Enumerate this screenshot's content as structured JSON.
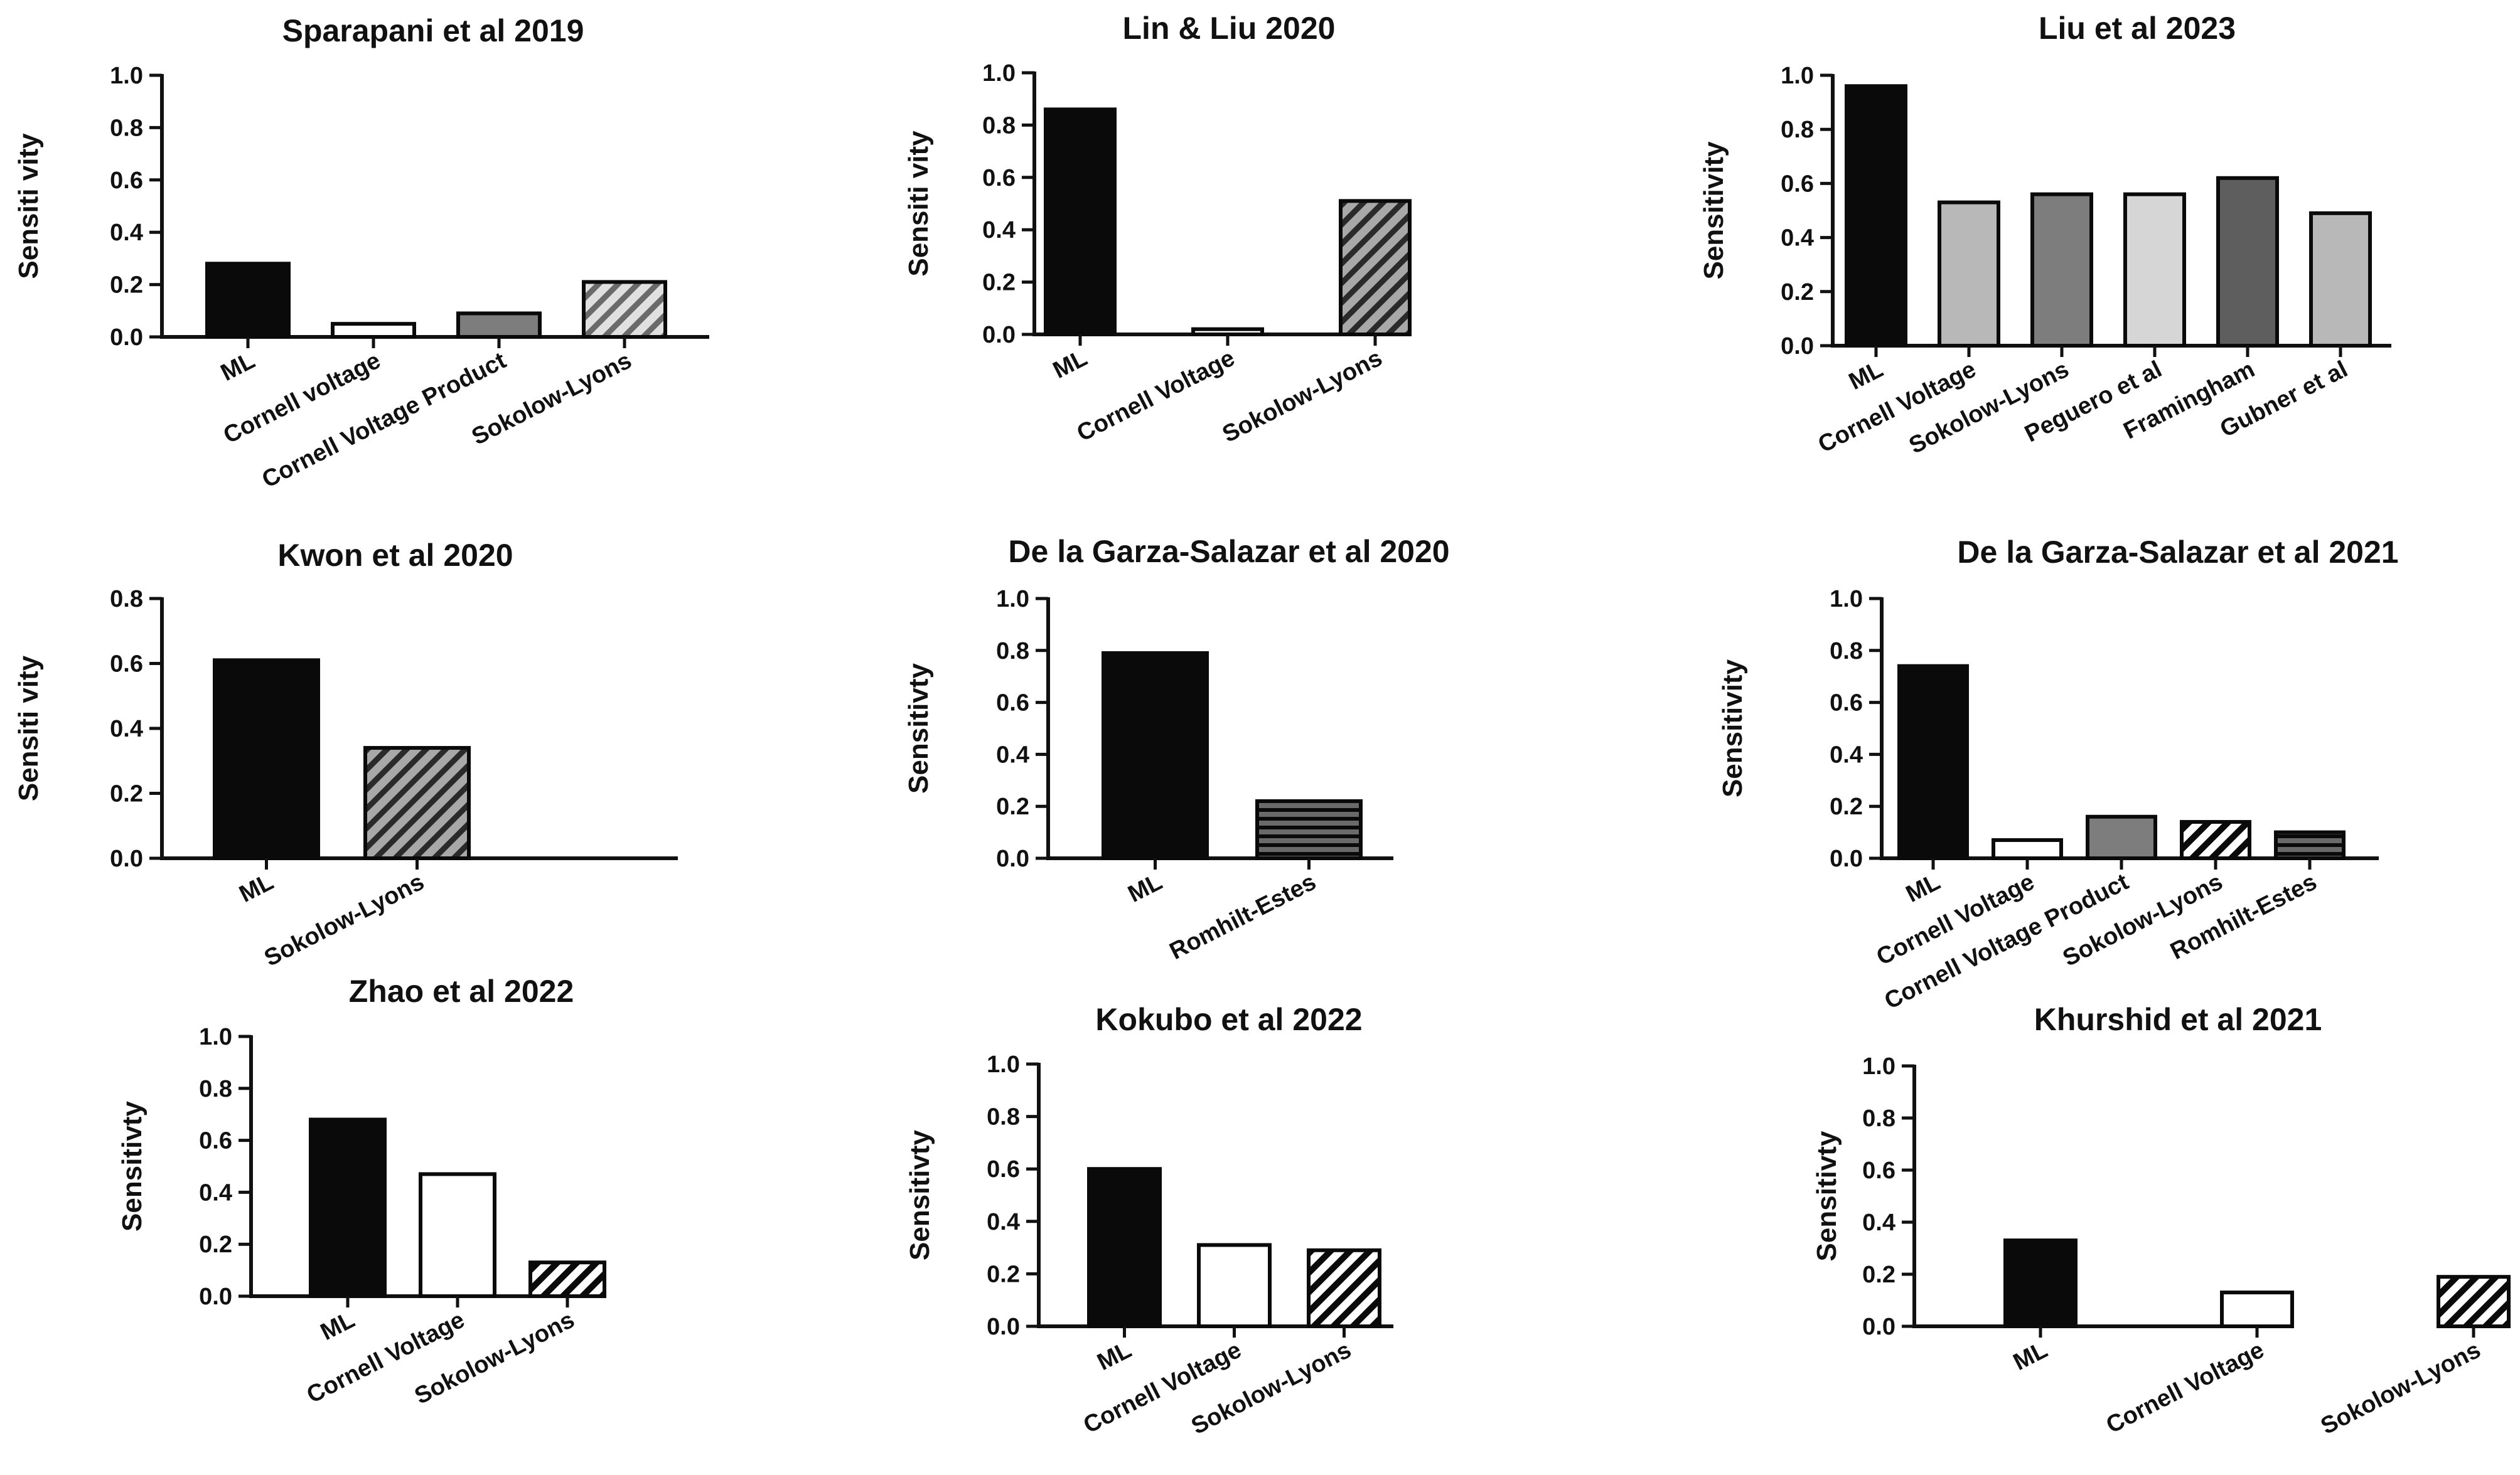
{
  "colors": {
    "black": "#0a0a0a",
    "white": "#ffffff",
    "dark_gray": "#5e5e5e",
    "mid_gray": "#7d7d7d",
    "light_gray": "#b8b8b8",
    "pale_gray": "#d6d6d6",
    "axis": "#111111"
  },
  "chart_data": [
    {
      "type": "bar",
      "title": "Sparapani et al 2019",
      "ylabel": "Sensiti vity",
      "ylim": [
        0,
        1.0
      ],
      "yticks": [
        "0.0",
        "0.2",
        "0.4",
        "0.6",
        "0.8",
        "1.0"
      ],
      "categories": [
        "ML",
        "Cornell voltage",
        "Cornell Voltage Product",
        "Sokolow-Lyons"
      ],
      "values": [
        0.28,
        0.05,
        0.09,
        0.21
      ],
      "fills": [
        "black",
        "white",
        "gray",
        "hatch-light"
      ]
    },
    {
      "type": "bar",
      "title": "Lin & Liu 2020",
      "ylabel": "Sensiti vity",
      "ylim": [
        0,
        1.0
      ],
      "yticks": [
        "0.0",
        "0.2",
        "0.4",
        "0.6",
        "0.8",
        "1.0"
      ],
      "categories": [
        "ML",
        "Cornell Voltage",
        "Sokolow-Lyons"
      ],
      "values": [
        0.86,
        0.02,
        0.51
      ],
      "fills": [
        "black",
        "white",
        "hatch-gray"
      ]
    },
    {
      "type": "bar",
      "title": "Liu et al 2023",
      "ylabel": "Sensitivity",
      "ylim": [
        0,
        1.0
      ],
      "yticks": [
        "0.0",
        "0.2",
        "0.4",
        "0.6",
        "0.8",
        "1.0"
      ],
      "categories": [
        "ML",
        "Cornell Voltage",
        "Sokolow-Lyons",
        "Peguero et al",
        "Framingham",
        "Gubner et al"
      ],
      "values": [
        0.96,
        0.53,
        0.56,
        0.56,
        0.62,
        0.49
      ],
      "fills": [
        "black",
        "light-gray",
        "gray",
        "pale-gray",
        "dark-gray",
        "light-gray"
      ]
    },
    {
      "type": "bar",
      "title": "Kwon et al 2020",
      "ylabel": "Sensiti vity",
      "ylim": [
        0,
        0.8
      ],
      "yticks": [
        "0.0",
        "0.2",
        "0.4",
        "0.6",
        "0.8"
      ],
      "categories": [
        "ML",
        "Sokolow-Lyons"
      ],
      "values": [
        0.61,
        0.34
      ],
      "fills": [
        "black",
        "hatch-gray"
      ]
    },
    {
      "type": "bar",
      "title": "De la Garza-Salazar et al 2020",
      "ylabel": "Sensitivty",
      "ylim": [
        0,
        1.0
      ],
      "yticks": [
        "0.0",
        "0.2",
        "0.4",
        "0.6",
        "0.8",
        "1.0"
      ],
      "categories": [
        "ML",
        "Romhilt-Estes"
      ],
      "values": [
        0.79,
        0.22
      ],
      "fills": [
        "black",
        "hlines"
      ]
    },
    {
      "type": "bar",
      "title": "De la Garza-Salazar et al 2021",
      "ylabel": "Sensitivity",
      "ylim": [
        0,
        1.0
      ],
      "yticks": [
        "0.0",
        "0.2",
        "0.4",
        "0.6",
        "0.8",
        "1.0"
      ],
      "categories": [
        "ML",
        "Cornell Voltage",
        "Cornell Voltage Product",
        "Sokolow-Lyons",
        "Romhilt-Estes"
      ],
      "values": [
        0.74,
        0.07,
        0.16,
        0.14,
        0.1
      ],
      "fills": [
        "black",
        "white",
        "gray",
        "hatch-bw",
        "hlines"
      ]
    },
    {
      "type": "bar",
      "title": "Zhao et al 2022",
      "ylabel": "Sensitivty",
      "ylim": [
        0,
        1.0
      ],
      "yticks": [
        "0.0",
        "0.2",
        "0.4",
        "0.6",
        "0.8",
        "1.0"
      ],
      "categories": [
        "ML",
        "Cornell Voltage",
        "Sokolow-Lyons"
      ],
      "values": [
        0.68,
        0.47,
        0.13
      ],
      "fills": [
        "black",
        "white",
        "hatch-bw"
      ]
    },
    {
      "type": "bar",
      "title": "Kokubo et al 2022",
      "ylabel": "Sensitivty",
      "ylim": [
        0,
        1.0
      ],
      "yticks": [
        "0.0",
        "0.2",
        "0.4",
        "0.6",
        "0.8",
        "1.0"
      ],
      "categories": [
        "ML",
        "Cornell Voltage",
        "Sokolow-Lyons"
      ],
      "values": [
        0.6,
        0.31,
        0.29
      ],
      "fills": [
        "black",
        "white",
        "hatch-bw"
      ]
    },
    {
      "type": "bar",
      "title": "Khurshid et al 2021",
      "ylabel": "Sensitivty",
      "ylim": [
        0,
        1.0
      ],
      "yticks": [
        "0.0",
        "0.2",
        "0.4",
        "0.6",
        "0.8",
        "1.0"
      ],
      "categories": [
        "ML",
        "Cornell Voltage",
        "Sokolow-Lyons"
      ],
      "values": [
        0.33,
        0.13,
        0.19
      ],
      "fills": [
        "black",
        "white",
        "hatch-bw"
      ]
    }
  ]
}
